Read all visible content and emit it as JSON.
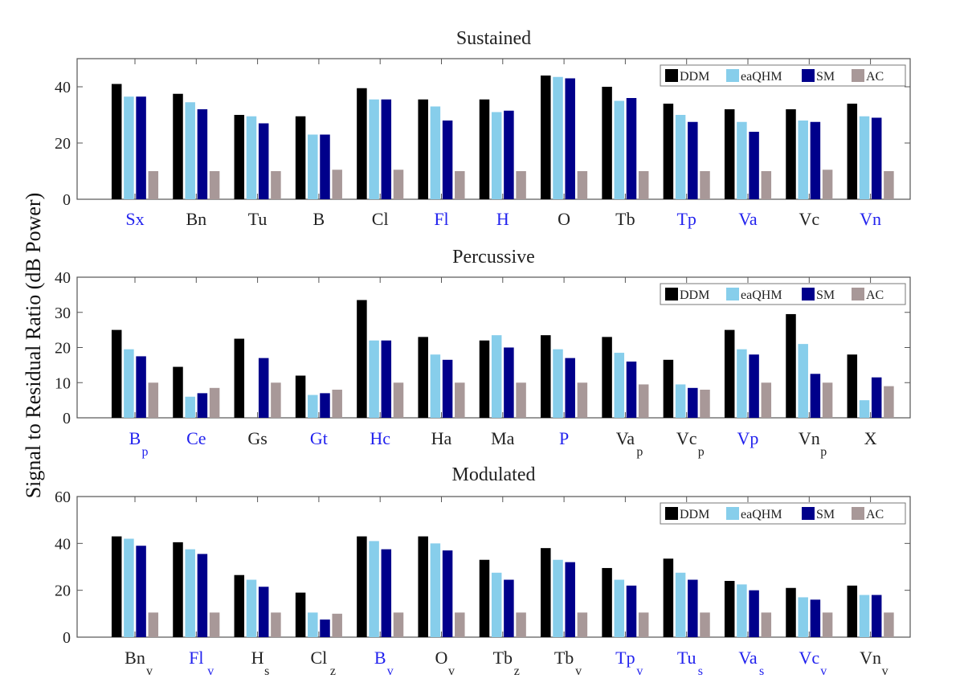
{
  "figure": {
    "ylabel": "Signal to Residual Ratio (dB Power)"
  },
  "colors": {
    "DDM": "#000000",
    "eaQHM": "#87ceeb",
    "SM": "#00008b",
    "AC": "#a89898",
    "highlight_tick": "#2222ee",
    "normal_tick": "#222222"
  },
  "chart_data": [
    {
      "type": "bar",
      "title": "Sustained",
      "ylim": [
        0,
        50
      ],
      "yticks": [
        0,
        20,
        40
      ],
      "legend_position": "top-right",
      "categories": [
        {
          "label": "Sx",
          "sub": "",
          "highlight": true
        },
        {
          "label": "Bn",
          "sub": "",
          "highlight": false
        },
        {
          "label": "Tu",
          "sub": "",
          "highlight": false
        },
        {
          "label": "B",
          "sub": "",
          "highlight": false
        },
        {
          "label": "Cl",
          "sub": "",
          "highlight": false
        },
        {
          "label": "Fl",
          "sub": "",
          "highlight": true
        },
        {
          "label": "H",
          "sub": "",
          "highlight": true
        },
        {
          "label": "O",
          "sub": "",
          "highlight": false
        },
        {
          "label": "Tb",
          "sub": "",
          "highlight": false
        },
        {
          "label": "Tp",
          "sub": "",
          "highlight": true
        },
        {
          "label": "Va",
          "sub": "",
          "highlight": true
        },
        {
          "label": "Vc",
          "sub": "",
          "highlight": false
        },
        {
          "label": "Vn",
          "sub": "",
          "highlight": true
        }
      ],
      "series": [
        {
          "name": "DDM",
          "values": [
            41,
            37.5,
            30,
            29.5,
            39.5,
            35.5,
            35.5,
            44,
            40,
            34,
            32,
            32,
            34
          ]
        },
        {
          "name": "eaQHM",
          "values": [
            36.5,
            34.5,
            29.5,
            23,
            35.5,
            33,
            31,
            43.5,
            35,
            30,
            27.5,
            28,
            29.5
          ]
        },
        {
          "name": "SM",
          "values": [
            36.5,
            32,
            27,
            23,
            35.5,
            28,
            31.5,
            43,
            36,
            27.5,
            24,
            27.5,
            29
          ]
        },
        {
          "name": "AC",
          "values": [
            10,
            10,
            10,
            10.5,
            10.5,
            10,
            10,
            10,
            10,
            10,
            10,
            10.5,
            10
          ]
        }
      ]
    },
    {
      "type": "bar",
      "title": "Percussive",
      "ylim": [
        0,
        40
      ],
      "yticks": [
        0,
        10,
        20,
        30,
        40
      ],
      "legend_position": "top-right",
      "categories": [
        {
          "label": "B",
          "sub": "p",
          "highlight": true
        },
        {
          "label": "Ce",
          "sub": "",
          "highlight": true
        },
        {
          "label": "Gs",
          "sub": "",
          "highlight": false
        },
        {
          "label": "Gt",
          "sub": "",
          "highlight": true
        },
        {
          "label": "Hc",
          "sub": "",
          "highlight": true
        },
        {
          "label": "Ha",
          "sub": "",
          "highlight": false
        },
        {
          "label": "Ma",
          "sub": "",
          "highlight": false
        },
        {
          "label": "P",
          "sub": "",
          "highlight": true
        },
        {
          "label": "Va",
          "sub": "p",
          "highlight": false
        },
        {
          "label": "Vc",
          "sub": "p",
          "highlight": false
        },
        {
          "label": "Vp",
          "sub": "",
          "highlight": true
        },
        {
          "label": "Vn",
          "sub": "p",
          "highlight": false
        },
        {
          "label": "X",
          "sub": "",
          "highlight": false
        }
      ],
      "series": [
        {
          "name": "DDM",
          "values": [
            25,
            14.5,
            22.5,
            12,
            33.5,
            23,
            22,
            23.5,
            23,
            16.5,
            25,
            29.5,
            18
          ]
        },
        {
          "name": "eaQHM",
          "values": [
            19.5,
            6,
            0,
            6.5,
            22,
            18,
            23.5,
            19.5,
            18.5,
            9.5,
            19.5,
            21,
            5
          ]
        },
        {
          "name": "SM",
          "values": [
            17.5,
            7,
            17,
            7,
            22,
            16.5,
            20,
            17,
            16,
            8.5,
            18,
            12.5,
            11.5
          ]
        },
        {
          "name": "AC",
          "values": [
            10,
            8.5,
            10,
            8,
            10,
            10,
            10,
            10,
            9.5,
            8,
            10,
            10,
            9
          ]
        }
      ]
    },
    {
      "type": "bar",
      "title": "Modulated",
      "ylim": [
        0,
        60
      ],
      "yticks": [
        0,
        20,
        40,
        60
      ],
      "legend_position": "top-right",
      "categories": [
        {
          "label": "Bn",
          "sub": "v",
          "highlight": false
        },
        {
          "label": "Fl",
          "sub": "v",
          "highlight": true
        },
        {
          "label": "H",
          "sub": "s",
          "highlight": false
        },
        {
          "label": "Cl",
          "sub": "z",
          "highlight": false
        },
        {
          "label": "B",
          "sub": "v",
          "highlight": true
        },
        {
          "label": "O",
          "sub": "v",
          "highlight": false
        },
        {
          "label": "Tb",
          "sub": "z",
          "highlight": false
        },
        {
          "label": "Tb",
          "sub": "v",
          "highlight": false
        },
        {
          "label": "Tp",
          "sub": "v",
          "highlight": true
        },
        {
          "label": "Tu",
          "sub": "s",
          "highlight": true
        },
        {
          "label": "Va",
          "sub": "s",
          "highlight": true
        },
        {
          "label": "Vc",
          "sub": "v",
          "highlight": true
        },
        {
          "label": "Vn",
          "sub": "v",
          "highlight": false
        }
      ],
      "series": [
        {
          "name": "DDM",
          "values": [
            43,
            40.5,
            26.5,
            19,
            43,
            43,
            33,
            38,
            29.5,
            33.5,
            24,
            21,
            22
          ]
        },
        {
          "name": "eaQHM",
          "values": [
            42,
            37.5,
            24.5,
            10.5,
            41,
            40,
            27.5,
            33,
            24.5,
            27.5,
            22.5,
            17,
            18
          ]
        },
        {
          "name": "SM",
          "values": [
            39,
            35.5,
            21.5,
            7.5,
            37.5,
            37,
            24.5,
            32,
            22,
            24.5,
            20,
            16,
            18
          ]
        },
        {
          "name": "AC",
          "values": [
            10.5,
            10.5,
            10.5,
            10,
            10.5,
            10.5,
            10.5,
            10.5,
            10.5,
            10.5,
            10.5,
            10.5,
            10.5
          ]
        }
      ]
    }
  ]
}
